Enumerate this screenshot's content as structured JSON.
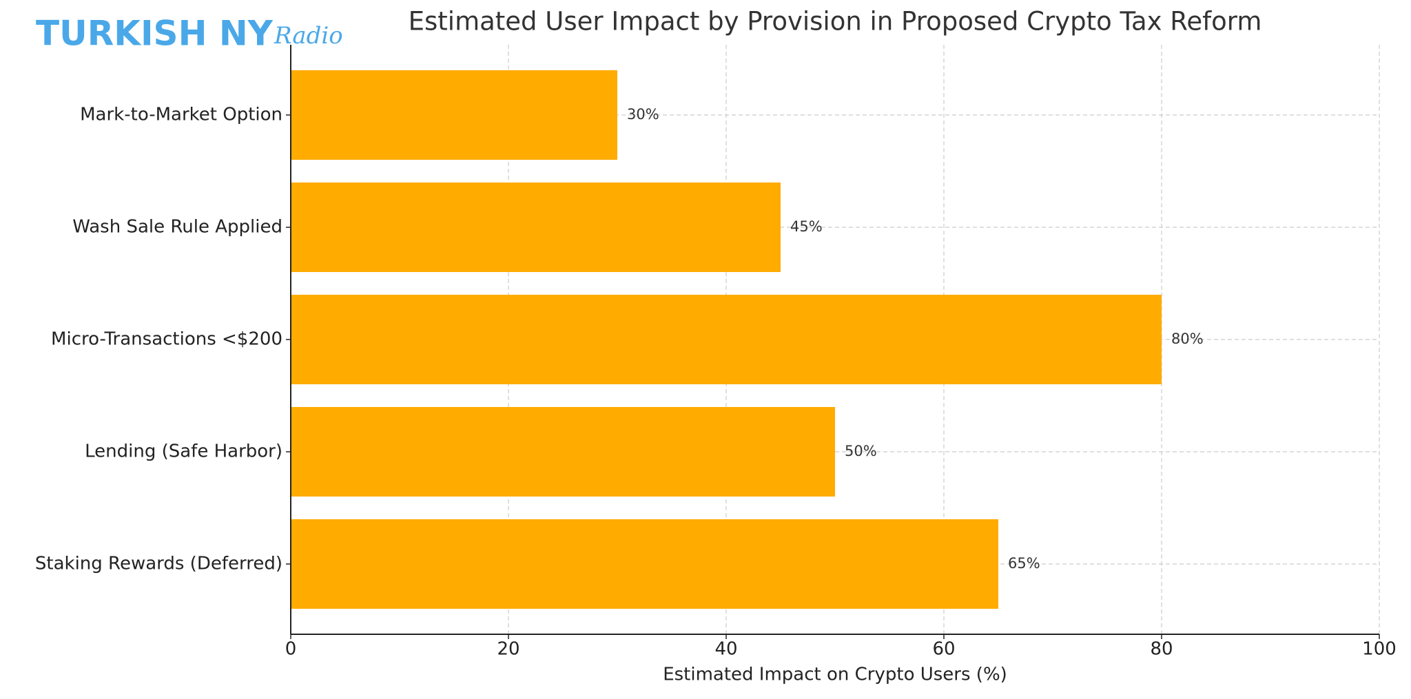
{
  "logo": {
    "main": "TURKISH NY",
    "script": "Radio"
  },
  "chart_data": {
    "type": "hbar",
    "title": "Estimated User Impact by Provision in Proposed Crypto Tax Reform",
    "x_label": "Estimated Impact on Crypto Users (%)",
    "categories": [
      "Mark-to-Market Option",
      "Wash Sale Rule Applied",
      "Micro-Transactions <$200",
      "Lending (Safe Harbor)",
      "Staking Rewards (Deferred)"
    ],
    "values": [
      30,
      45,
      80,
      50,
      65
    ],
    "value_labels": [
      "30%",
      "45%",
      "80%",
      "50%",
      "65%"
    ],
    "color": "#ffab00",
    "xlim": [
      0,
      100
    ],
    "xticks": [
      0,
      20,
      40,
      60,
      80,
      100
    ],
    "grid": true
  }
}
